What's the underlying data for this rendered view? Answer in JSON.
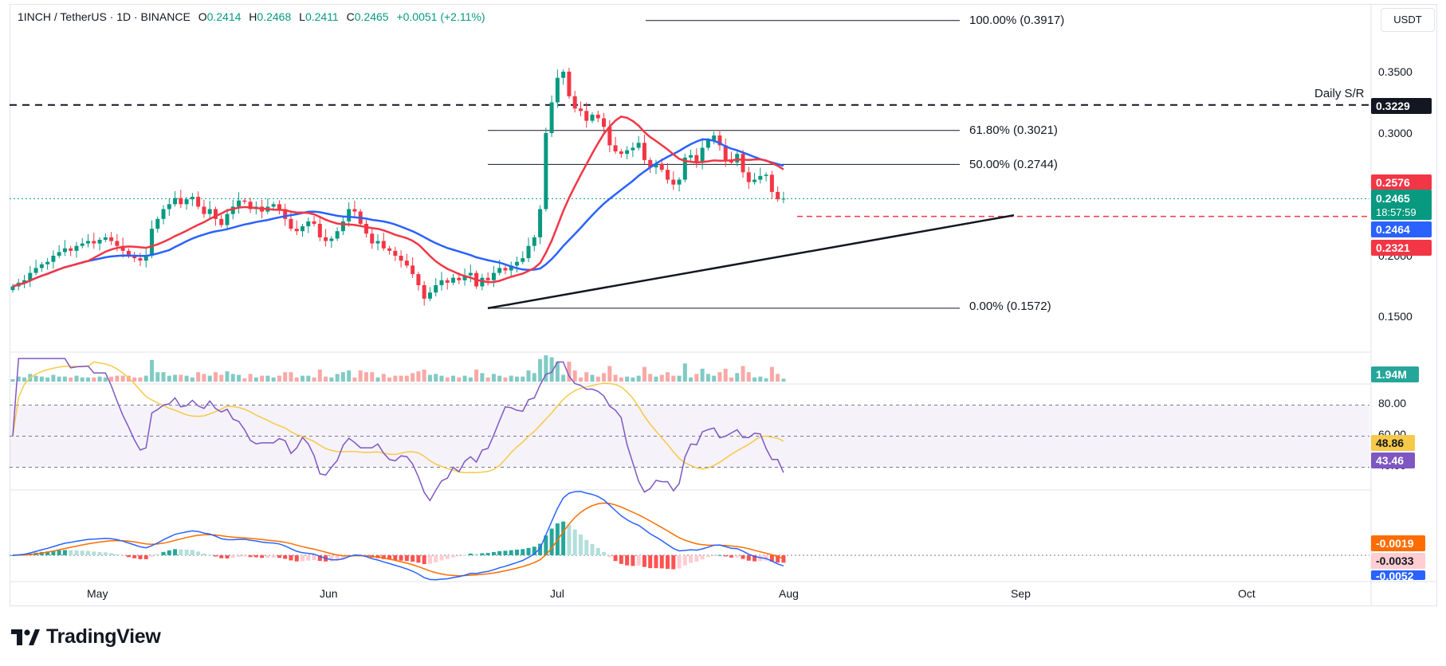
{
  "header": {
    "symbol": "1INCH / TetherUS · 1D · BINANCE",
    "open_label": "O",
    "open": "0.2414",
    "high_label": "H",
    "high": "0.2468",
    "low_label": "L",
    "low": "0.2411",
    "close_label": "C",
    "close": "0.2465",
    "change": "+0.0051 (+2.11%)"
  },
  "currency": "USDT",
  "logo": {
    "text": "TradingView"
  },
  "colors": {
    "up": "#089981",
    "down": "#f23645",
    "ma50": "#f23645",
    "ma100": "#2962ff",
    "rsi": "#7e57c2",
    "rsi_ma": "#f7c948",
    "macd": "#2962ff",
    "signal": "#ff6d00",
    "hist_up_strong": "#26a69a",
    "hist_up_weak": "#b2dfdb",
    "hist_down_strong": "#ff5252",
    "hist_down_weak": "#ffcdd2"
  },
  "price_axis": {
    "labels": [
      "0.3500",
      "0.3000",
      "0.2000",
      "0.1500"
    ]
  },
  "tags": {
    "daily_sr": "0.3229",
    "ma50": "0.2576",
    "last": "0.2465",
    "countdown": "18:57:59",
    "ma100": "0.2464",
    "support": "0.2321",
    "volume": "1.94M",
    "rsi_ma": "48.86",
    "rsi": "43.46",
    "macd_signal": "-0.0019",
    "macd_hist": "-0.0033",
    "macd_line": "-0.0052"
  },
  "rsi_axis": {
    "labels": [
      "80.00",
      "60.00",
      "40.00"
    ]
  },
  "annotations": {
    "daily_sr_label": "Daily S/R",
    "fib": [
      {
        "level": "100.00% (0.3917)",
        "price": 0.3917
      },
      {
        "level": "61.80% (0.3021)",
        "price": 0.3021
      },
      {
        "level": "50.00% (0.2744)",
        "price": 0.2744
      },
      {
        "level": "0.00% (0.1572)",
        "price": 0.1572
      }
    ]
  },
  "time_axis": {
    "labels": [
      "May",
      "Jun",
      "Jul",
      "Aug",
      "Sep",
      "Oct"
    ]
  },
  "chart_data": {
    "type": "candlestick",
    "symbol": "1INCH/USDT",
    "interval": "1D",
    "price_range": [
      0.128,
      0.398
    ],
    "daily_sr": 0.3229,
    "support": 0.2321,
    "close_series": [
      0.175,
      0.178,
      0.18,
      0.186,
      0.19,
      0.193,
      0.195,
      0.2,
      0.203,
      0.206,
      0.204,
      0.208,
      0.21,
      0.212,
      0.21,
      0.213,
      0.215,
      0.212,
      0.208,
      0.204,
      0.2,
      0.198,
      0.196,
      0.2,
      0.222,
      0.23,
      0.238,
      0.242,
      0.247,
      0.242,
      0.246,
      0.248,
      0.24,
      0.234,
      0.238,
      0.23,
      0.225,
      0.234,
      0.24,
      0.245,
      0.244,
      0.238,
      0.24,
      0.236,
      0.24,
      0.242,
      0.238,
      0.23,
      0.222,
      0.22,
      0.224,
      0.228,
      0.226,
      0.215,
      0.212,
      0.214,
      0.22,
      0.228,
      0.238,
      0.236,
      0.226,
      0.218,
      0.21,
      0.212,
      0.206,
      0.204,
      0.2,
      0.196,
      0.192,
      0.185,
      0.176,
      0.165,
      0.17,
      0.176,
      0.18,
      0.178,
      0.182,
      0.18,
      0.184,
      0.186,
      0.175,
      0.182,
      0.18,
      0.186,
      0.19,
      0.188,
      0.192,
      0.195,
      0.198,
      0.208,
      0.215,
      0.238,
      0.3,
      0.325,
      0.345,
      0.35,
      0.33,
      0.32,
      0.318,
      0.31,
      0.315,
      0.312,
      0.305,
      0.29,
      0.285,
      0.283,
      0.286,
      0.288,
      0.292,
      0.278,
      0.272,
      0.275,
      0.27,
      0.262,
      0.258,
      0.262,
      0.28,
      0.282,
      0.276,
      0.288,
      0.294,
      0.298,
      0.29,
      0.278,
      0.276,
      0.283,
      0.268,
      0.26,
      0.262,
      0.265,
      0.266,
      0.252,
      0.246,
      0.2465
    ],
    "volume_last": "1.94M",
    "rsi_last": 43.46,
    "rsi_ma_last": 48.86,
    "macd_last": -0.0052,
    "macd_signal_last": -0.0019,
    "macd_hist_last": -0.0033
  }
}
